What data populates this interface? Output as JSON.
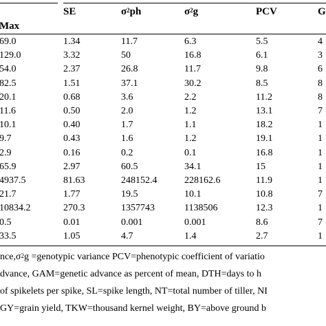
{
  "table": {
    "header_row1": {
      "se": "SE",
      "s2ph_sigma": "σ",
      "s2ph_sup": "2",
      "s2ph_sub": "ph",
      "s2g_sigma": "σ",
      "s2g_sup": "2",
      "s2g_sub": "g",
      "pcv": "PCV",
      "gcv": "G"
    },
    "header_row2": {
      "max": "Max"
    },
    "rows": [
      [
        "69.0",
        "1.34",
        "11.7",
        "6.3",
        "5.5",
        "4"
      ],
      [
        "129.0",
        "3.32",
        "50",
        "16.8",
        "6.1",
        "3"
      ],
      [
        "54.0",
        "2.37",
        "26.8",
        "11.7",
        "9.8",
        "6"
      ],
      [
        "82.5",
        "1.51",
        "37.1",
        "30.2",
        "8.5",
        "8"
      ],
      [
        "20.1",
        "0.68",
        "3.6",
        "2.2",
        "11.2",
        "8"
      ],
      [
        "11.6",
        "0.50",
        "2.0",
        "1.2",
        "13.1",
        "7"
      ],
      [
        "10.1",
        "0.40",
        "1.7",
        "1.1",
        "18.2",
        "1"
      ],
      [
        "9.7",
        "0.43",
        "1.6",
        "1.2",
        "19.1",
        "1"
      ],
      [
        "2.9",
        "0.16",
        "0.2",
        "0.1",
        "16.8",
        "1"
      ],
      [
        "65.9",
        "2.97",
        "60.5",
        "34.1",
        "15",
        "1"
      ],
      [
        "4937.5",
        "81.63",
        "248152.4",
        "228162.6",
        "11.9",
        "1"
      ],
      [
        "21.7",
        "1.77",
        "19.5",
        "10.1",
        "10.8",
        "7"
      ],
      [
        "10834.2",
        "270.3",
        "1357743",
        "1138506",
        "12.3",
        "1"
      ],
      [
        "0.5",
        "0.01",
        "0.001",
        "0.001",
        "8.6",
        "7"
      ],
      [
        "33.5",
        "1.05",
        "4.7",
        "1.4",
        "2.7",
        "1"
      ]
    ]
  },
  "footnote": {
    "line1_a": "nce,σ",
    "line1_sup": "2",
    "line1_b": "g =genotypic variance PCV=phenotypic coefficient of variatio",
    "line2": "dvance, GAM=genetic advance as percent of mean, DTH=days to h",
    "line3": "of spikelets per spike, SL=spike length, NT=total number of tiller, NI",
    "line4": "GY=grain yield, TKW=thousand kernel weight, BY=above ground b"
  }
}
